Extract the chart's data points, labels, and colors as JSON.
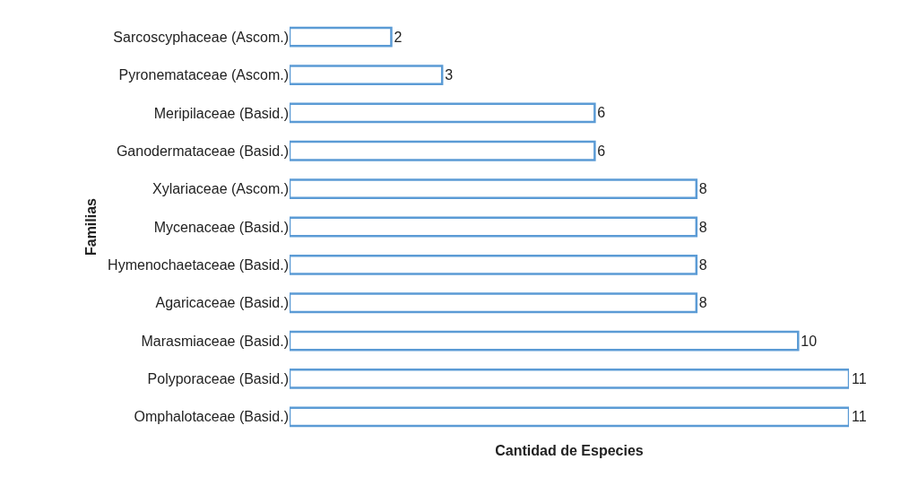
{
  "chart_data": {
    "type": "bar",
    "orientation": "horizontal",
    "xlabel": "Cantidad de Especies",
    "ylabel": "Familias",
    "categories": [
      "Sarcoscyphaceae (Ascom.)",
      "Pyronemataceae (Ascom.)",
      "Meripilaceae (Basid.)",
      "Ganodermataceae (Basid.)",
      "Xylariaceae (Ascom.)",
      "Mycenaceae (Basid.)",
      "Hymenochaetaceae (Basid.)",
      "Agaricaceae (Basid.)",
      "Marasmiaceae (Basid.)",
      "Polyporaceae (Basid.)",
      "Omphalotaceae (Basid.)"
    ],
    "values": [
      2,
      3,
      6,
      6,
      8,
      8,
      8,
      8,
      10,
      11,
      11
    ],
    "color": "#5b9bd5",
    "data_labels": true,
    "tick_labels": "y"
  }
}
